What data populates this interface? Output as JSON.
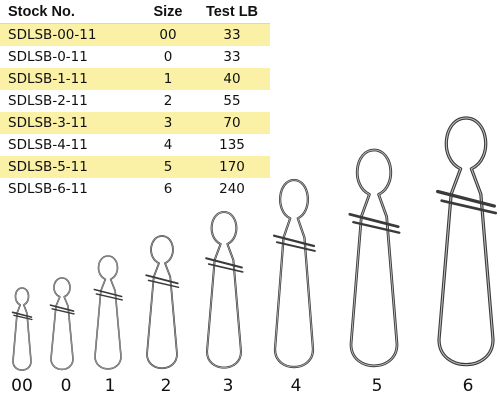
{
  "table": {
    "headers": {
      "stock": "Stock No.",
      "size": "Size",
      "test": "Test LB"
    },
    "rows": [
      {
        "stock": "SDLSB-00-11",
        "size": "00",
        "test": "33"
      },
      {
        "stock": "SDLSB-0-11",
        "size": "0",
        "test": "33"
      },
      {
        "stock": "SDLSB-1-11",
        "size": "1",
        "test": "40"
      },
      {
        "stock": "SDLSB-2-11",
        "size": "2",
        "test": "55"
      },
      {
        "stock": "SDLSB-3-11",
        "size": "3",
        "test": "70"
      },
      {
        "stock": "SDLSB-4-11",
        "size": "4",
        "test": "135"
      },
      {
        "stock": "SDLSB-5-11",
        "size": "5",
        "test": "170"
      },
      {
        "stock": "SDLSB-6-11",
        "size": "6",
        "test": "240"
      }
    ]
  },
  "snaps": {
    "labels": [
      "00",
      "0",
      "1",
      "2",
      "3",
      "4",
      "5",
      "6"
    ]
  },
  "colors": {
    "row_highlight": "#fbf1a6",
    "wire": "#3a3a3a"
  }
}
